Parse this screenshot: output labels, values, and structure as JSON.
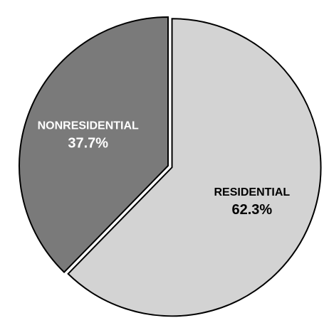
{
  "chart_data": {
    "type": "pie",
    "title": "",
    "slices": [
      {
        "label": "RESIDENTIAL",
        "value": 62.3,
        "value_label": "62.3%",
        "color": "#d3d3d3",
        "label_color": "#000000",
        "exploded": true
      },
      {
        "label": "NONRESIDENTIAL",
        "value": 37.7,
        "value_label": "37.7%",
        "color": "#7a7a7a",
        "label_color": "#ffffff",
        "exploded": false
      }
    ],
    "start_angle_deg": 0,
    "direction": "clockwise",
    "legend": "none"
  }
}
